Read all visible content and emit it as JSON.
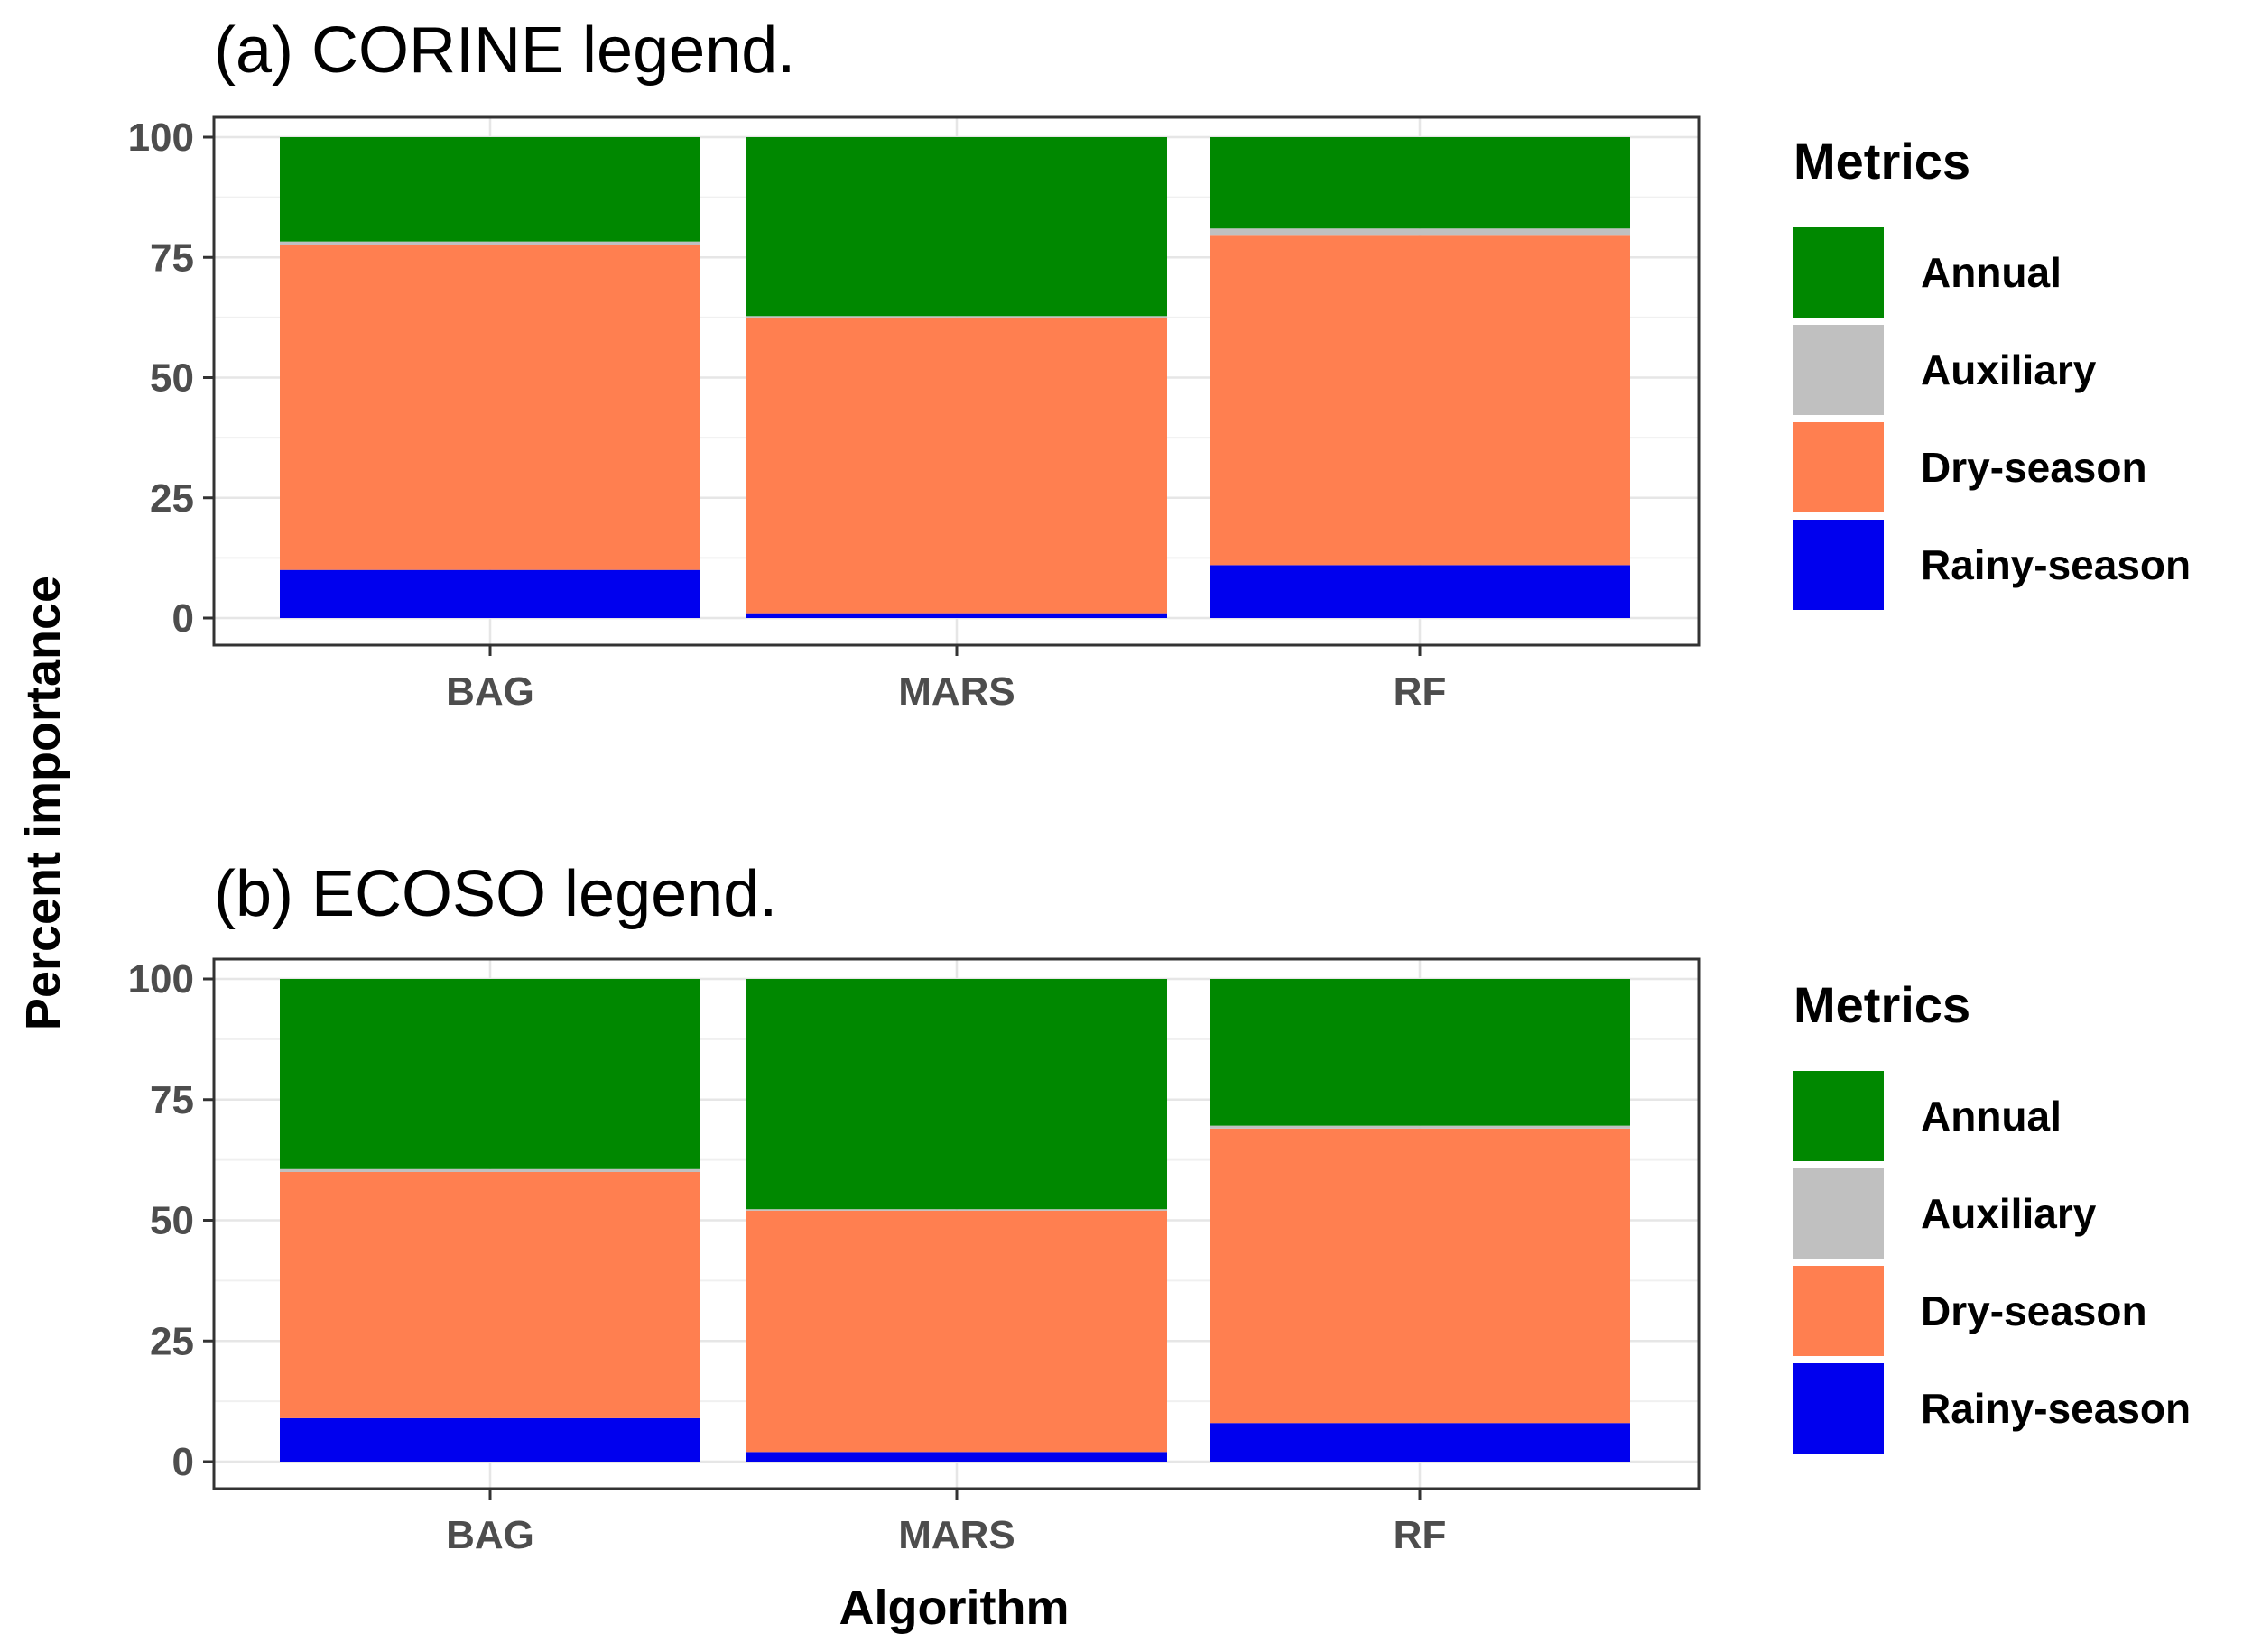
{
  "figure": {
    "ylabel": "Percent importance",
    "xlabel": "Algorithm"
  },
  "legend": {
    "title": "Metrics",
    "items": [
      "Annual",
      "Auxiliary",
      "Dry-season",
      "Rainy-season"
    ]
  },
  "colors": {
    "Annual": "#008800",
    "Auxiliary": "#c0c0c0",
    "Dry-season": "#ff7f50",
    "Rainy-season": "#0000ee"
  },
  "chart_data": [
    {
      "type": "bar",
      "stacked": true,
      "title": "(a) CORINE legend.",
      "categories": [
        "BAG",
        "MARS",
        "RF"
      ],
      "ylim": [
        0,
        100
      ],
      "yticks": [
        "0",
        "25",
        "50",
        "75",
        "100"
      ],
      "grid": true,
      "legend_position": "right",
      "series": [
        {
          "name": "Rainy-season",
          "values": [
            10,
            1,
            11
          ]
        },
        {
          "name": "Dry-season",
          "values": [
            67.5,
            61.5,
            68.5
          ]
        },
        {
          "name": "Auxiliary",
          "values": [
            0.8,
            0.3,
            1.5
          ]
        },
        {
          "name": "Annual",
          "values": [
            21.7,
            37.2,
            19
          ]
        }
      ]
    },
    {
      "type": "bar",
      "stacked": true,
      "title": "(b) ECOSO legend.",
      "categories": [
        "BAG",
        "MARS",
        "RF"
      ],
      "ylim": [
        0,
        100
      ],
      "yticks": [
        "0",
        "25",
        "50",
        "75",
        "100"
      ],
      "grid": true,
      "legend_position": "right",
      "series": [
        {
          "name": "Rainy-season",
          "values": [
            9,
            2,
            8
          ]
        },
        {
          "name": "Dry-season",
          "values": [
            51,
            50,
            61
          ]
        },
        {
          "name": "Auxiliary",
          "values": [
            0.6,
            0.3,
            0.6
          ]
        },
        {
          "name": "Annual",
          "values": [
            39.4,
            47.7,
            30.4
          ]
        }
      ]
    }
  ]
}
